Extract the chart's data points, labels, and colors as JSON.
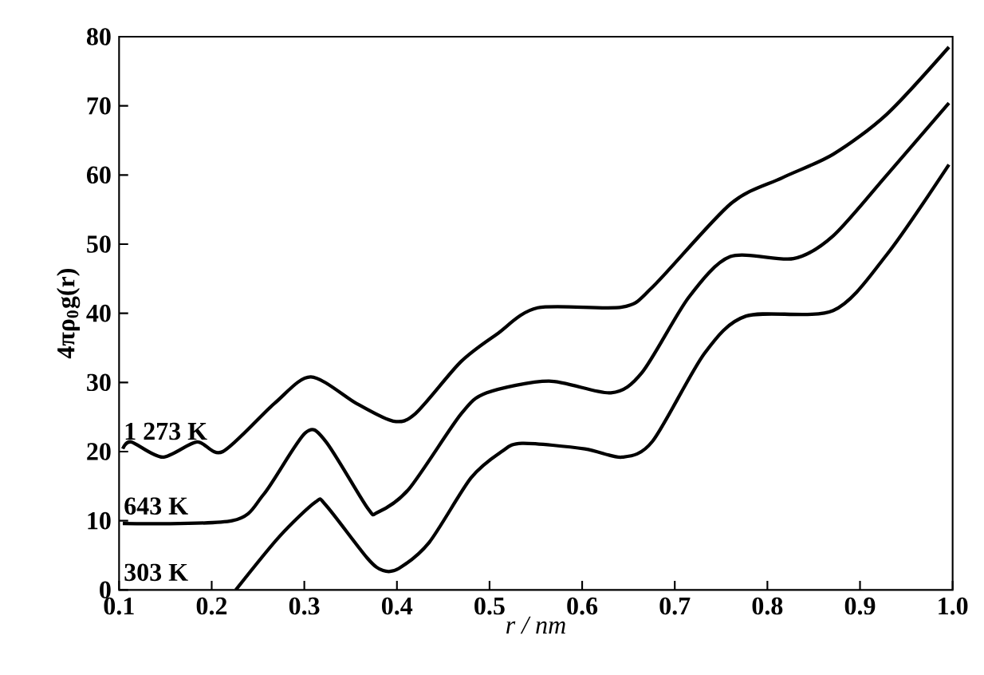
{
  "chart_data": {
    "type": "line",
    "xlabel": "r / nm",
    "ylabel": "4πρ$_{0}$g(r)",
    "xlim": [
      0.1,
      1.0
    ],
    "ylim": [
      0,
      80
    ],
    "xticks": [
      0.1,
      0.2,
      0.3,
      0.4,
      0.5,
      0.6,
      0.7,
      0.8,
      0.9,
      {
        "value": 1.0,
        "label": "1.0"
      }
    ],
    "yticks": [
      0,
      10,
      20,
      30,
      40,
      50,
      60,
      70,
      80
    ],
    "legend": "left",
    "series": [
      {
        "name": "1 273 K",
        "color": "#000000",
        "x": [
          0.104,
          0.113,
          0.147,
          0.184,
          0.212,
          0.268,
          0.307,
          0.357,
          0.396,
          0.42,
          0.469,
          0.508,
          0.552,
          0.643,
          0.676,
          0.76,
          0.816,
          0.871,
          0.929,
          0.996
        ],
        "values": [
          20.4,
          21.4,
          19.2,
          21.4,
          20,
          27,
          30.8,
          26.9,
          24.4,
          25.5,
          33,
          37,
          40.8,
          40.9,
          43.8,
          55.8,
          59.6,
          63,
          68.8,
          78.5
        ]
      },
      {
        "name": "643 K",
        "color": "#000000",
        "x": [
          0.104,
          0.222,
          0.256,
          0.301,
          0.323,
          0.368,
          0.379,
          0.413,
          0.469,
          0.497,
          0.564,
          0.631,
          0.665,
          0.715,
          0.76,
          0.828,
          0.871,
          0.929,
          0.996
        ],
        "values": [
          9.6,
          10,
          13.8,
          22.7,
          21.5,
          11.9,
          11.2,
          14.6,
          25.4,
          28.5,
          30.2,
          28.5,
          31.5,
          42.3,
          48.2,
          47.9,
          51.2,
          60,
          70.4
        ]
      },
      {
        "name": "303 K",
        "color": "#000000",
        "x": [
          0.226,
          0.273,
          0.312,
          0.323,
          0.368,
          0.385,
          0.402,
          0.435,
          0.48,
          0.513,
          0.535,
          0.603,
          0.643,
          0.676,
          0.732,
          0.777,
          0.871,
          0.929,
          0.996
        ],
        "values": [
          0,
          7.7,
          12.7,
          12.3,
          4.6,
          2.8,
          3.1,
          6.9,
          16.2,
          20,
          21.2,
          20.4,
          19.2,
          21.5,
          34.2,
          39.6,
          40.4,
          48.5,
          61.5
        ]
      }
    ]
  }
}
